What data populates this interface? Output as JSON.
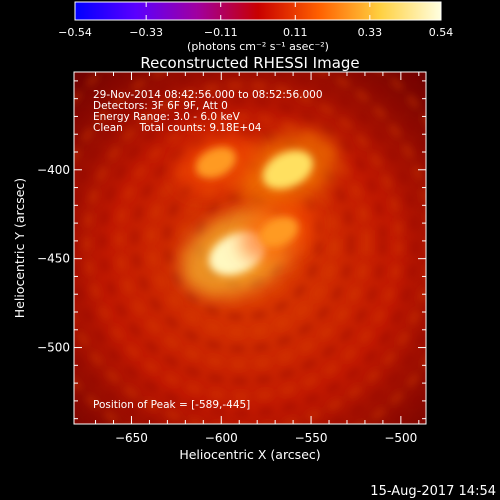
{
  "chart_data": {
    "type": "heatmap",
    "title": "Reconstructed RHESSI Image",
    "xlabel": "Heliocentric X (arcsec)",
    "ylabel": "Heliocentric Y (arcsec)",
    "xlim": [
      -682,
      -486
    ],
    "ylim": [
      -543,
      -345
    ],
    "x_ticks": [
      -650,
      -600,
      -550,
      -500
    ],
    "x_tick_labels": [
      "−650",
      "−600",
      "−550",
      "−500"
    ],
    "y_ticks": [
      -400,
      -450,
      -500
    ],
    "y_tick_labels": [
      "−400",
      "−450",
      "−500"
    ],
    "colorbar": {
      "range": [
        -0.54,
        0.54
      ],
      "ticks": [
        -0.54,
        -0.33,
        -0.11,
        0.11,
        0.33,
        0.54
      ],
      "tick_labels": [
        "−0.54",
        "−0.33",
        "−0.11",
        "0.11",
        "0.33",
        "0.54"
      ],
      "unit_label": "(photons cm⁻² s⁻¹ asec⁻²)",
      "colors": [
        "#0000ff",
        "#5a00ff",
        "#a000a0",
        "#c80000",
        "#ff6000",
        "#ffd040",
        "#ffffe0"
      ]
    },
    "annotations": [
      "29-Nov-2014 08:42:56.000 to 08:52:56.000",
      "Detectors: 3F 6F 9F, Att 0",
      "Energy Range: 3.0 - 6.0 keV",
      "Clean     Total counts: 9.18E+04"
    ],
    "peak_text": "Position of Peak = [-589,-445]",
    "sources": [
      {
        "x": -591,
        "y": -447,
        "peak": 0.54
      },
      {
        "x": -563,
        "y": -400,
        "peak": 0.45
      },
      {
        "x": -603,
        "y": -396,
        "peak": 0.3
      },
      {
        "x": -568,
        "y": -435,
        "peak": 0.28
      }
    ],
    "background_level": 0.18
  },
  "footer": {
    "timestamp": "15-Aug-2017 14:54"
  }
}
